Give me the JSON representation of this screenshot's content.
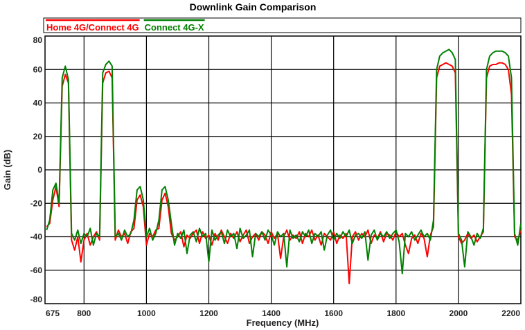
{
  "chart_data": {
    "type": "line",
    "title": "Downlink Gain Comparison",
    "xlabel": "Frequency  (MHz)",
    "ylabel": "Gain  (dB)",
    "xlim": [
      675,
      2200
    ],
    "ylim": [
      -80,
      80
    ],
    "xticks": [
      675,
      800,
      1000,
      1200,
      1400,
      1600,
      1800,
      2000,
      2200
    ],
    "yticks": [
      80,
      60,
      40,
      20,
      0,
      -20,
      -40,
      -60,
      -80
    ],
    "grid": true,
    "legend_placement": "top",
    "x": [
      680,
      690,
      700,
      710,
      720,
      730,
      740,
      750,
      760,
      770,
      780,
      790,
      800,
      810,
      820,
      830,
      840,
      850,
      860,
      870,
      880,
      890,
      900,
      910,
      920,
      930,
      940,
      950,
      960,
      970,
      980,
      990,
      1000,
      1010,
      1020,
      1030,
      1040,
      1050,
      1060,
      1070,
      1080,
      1090,
      1100,
      1110,
      1120,
      1130,
      1140,
      1150,
      1160,
      1170,
      1180,
      1190,
      1200,
      1210,
      1220,
      1230,
      1240,
      1250,
      1260,
      1270,
      1280,
      1290,
      1300,
      1310,
      1320,
      1330,
      1340,
      1350,
      1360,
      1370,
      1380,
      1390,
      1400,
      1410,
      1420,
      1430,
      1440,
      1450,
      1460,
      1470,
      1480,
      1490,
      1500,
      1510,
      1520,
      1530,
      1540,
      1550,
      1560,
      1570,
      1580,
      1590,
      1600,
      1610,
      1620,
      1630,
      1640,
      1650,
      1660,
      1670,
      1680,
      1690,
      1700,
      1710,
      1720,
      1730,
      1740,
      1750,
      1760,
      1770,
      1780,
      1790,
      1800,
      1810,
      1820,
      1830,
      1840,
      1850,
      1860,
      1870,
      1880,
      1890,
      1900,
      1910,
      1920,
      1930,
      1940,
      1950,
      1960,
      1970,
      1980,
      1990,
      2000,
      2010,
      2020,
      2030,
      2040,
      2050,
      2060,
      2070,
      2080,
      2090,
      2100,
      2110,
      2120,
      2130,
      2140,
      2150,
      2160,
      2170,
      2180,
      2190,
      2200
    ],
    "series": [
      {
        "name": "Home 4G/Connect 4G",
        "color": "#ff0000",
        "values": [
          -34,
          -32,
          -18,
          -10,
          -22,
          50,
          57,
          52,
          -42,
          -48,
          -40,
          -55,
          -42,
          -38,
          -45,
          -40,
          -37,
          -42,
          52,
          58,
          59,
          55,
          -42,
          -36,
          -40,
          -38,
          -44,
          -37,
          -35,
          -18,
          -15,
          -22,
          -45,
          -38,
          -40,
          -36,
          -35,
          -18,
          -14,
          -22,
          -38,
          -42,
          -40,
          -37,
          -46,
          -39,
          -41,
          -38,
          -36,
          -44,
          -37,
          -41,
          -39,
          -45,
          -38,
          -42,
          -36,
          -40,
          -44,
          -38,
          -41,
          -37,
          -43,
          -39,
          -36,
          -44,
          -40,
          -38,
          -42,
          -37,
          -39,
          -44,
          -37,
          -41,
          -38,
          -53,
          -40,
          -36,
          -42,
          -39,
          -41,
          -37,
          -44,
          -38,
          -40,
          -36,
          -42,
          -39,
          -45,
          -38,
          -40,
          -42,
          -37,
          -44,
          -39,
          -41,
          -38,
          -68,
          -40,
          -37,
          -42,
          -38,
          -40,
          -36,
          -44,
          -39,
          -41,
          -37,
          -43,
          -38,
          -39,
          -42,
          -37,
          -40,
          -38,
          -45,
          -50,
          -41,
          -39,
          -44,
          -38,
          -41,
          -52,
          -39,
          -34,
          55,
          62,
          63,
          64,
          63,
          62,
          58,
          -40,
          -44,
          -42,
          -38,
          -41,
          -39,
          -43,
          -40,
          -37,
          55,
          62,
          63,
          63,
          64,
          64,
          63,
          60,
          45,
          -40,
          -42,
          -36
        ]
      },
      {
        "name": "Connect 4G-X",
        "color": "#008000",
        "values": [
          -36,
          -30,
          -12,
          -8,
          -20,
          55,
          62,
          54,
          -38,
          -42,
          -36,
          -44,
          -38,
          -40,
          -35,
          -45,
          -38,
          -40,
          58,
          63,
          65,
          62,
          -40,
          -38,
          -42,
          -36,
          -40,
          -38,
          -30,
          -12,
          -10,
          -18,
          -40,
          -35,
          -42,
          -38,
          -30,
          -12,
          -10,
          -18,
          -32,
          -45,
          -38,
          -41,
          -36,
          -50,
          -39,
          -37,
          -43,
          -35,
          -40,
          -38,
          -55,
          -36,
          -42,
          -39,
          -37,
          -44,
          -36,
          -40,
          -38,
          -47,
          -35,
          -41,
          -39,
          -36,
          -52,
          -38,
          -40,
          -37,
          -42,
          -36,
          -39,
          -45,
          -37,
          -40,
          -38,
          -58,
          -36,
          -41,
          -39,
          -43,
          -37,
          -40,
          -36,
          -44,
          -38,
          -40,
          -37,
          -48,
          -39,
          -36,
          -42,
          -38,
          -41,
          -37,
          -40,
          -36,
          -44,
          -39,
          -38,
          -41,
          -37,
          -54,
          -39,
          -36,
          -42,
          -38,
          -40,
          -37,
          -41,
          -38,
          -36,
          -43,
          -62,
          -38,
          -40,
          -37,
          -42,
          -39,
          -36,
          -40,
          -38,
          -42,
          -30,
          60,
          68,
          70,
          71,
          72,
          70,
          66,
          -38,
          -42,
          -58,
          -37,
          -40,
          -45,
          -38,
          -41,
          -35,
          60,
          68,
          70,
          71,
          71,
          71,
          70,
          68,
          55,
          -38,
          -45,
          -32
        ]
      }
    ]
  }
}
